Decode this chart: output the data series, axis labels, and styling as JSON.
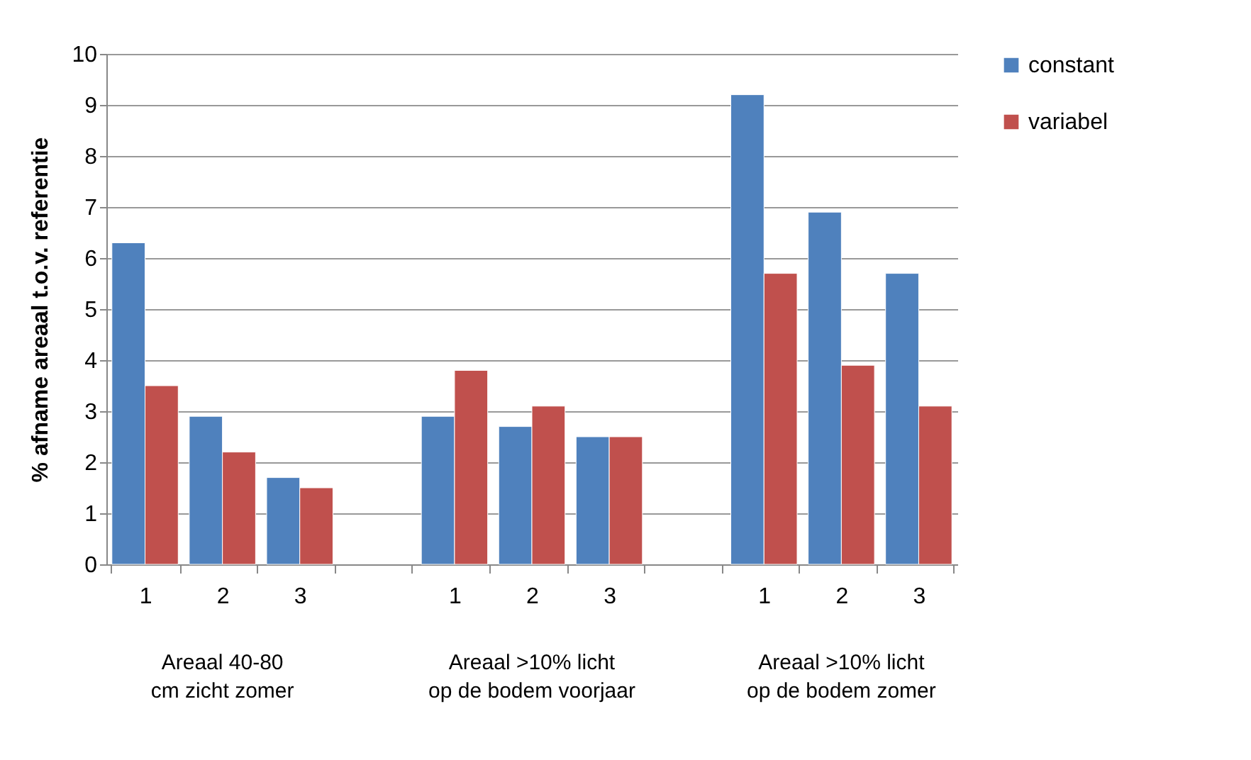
{
  "chart_data": {
    "type": "bar",
    "ylabel": "% afname areaal t.o.v. referentie",
    "categories": [
      "1",
      "2",
      "3",
      null,
      "1",
      "2",
      "3",
      null,
      "1",
      "2",
      "3"
    ],
    "series": [
      {
        "name": "constant",
        "color": "#4f81bd",
        "values": [
          6.3,
          2.9,
          1.7,
          null,
          2.9,
          2.7,
          2.5,
          null,
          9.2,
          6.9,
          5.7
        ]
      },
      {
        "name": "variabel",
        "color": "#c0504d",
        "values": [
          3.5,
          2.2,
          1.5,
          null,
          3.8,
          3.1,
          2.5,
          null,
          5.7,
          3.9,
          3.1
        ]
      }
    ],
    "annotations": [
      "Areaal 40-80 cm zicht zomer",
      "Areaal >10% licht op de bodem voorjaar",
      "Areaal >10% licht op de bodem zomer"
    ],
    "ylim": [
      0,
      10
    ],
    "yticks": [
      0,
      1,
      2,
      3,
      4,
      5,
      6,
      7,
      8,
      9,
      10
    ],
    "grid": "y",
    "legend": "right"
  }
}
